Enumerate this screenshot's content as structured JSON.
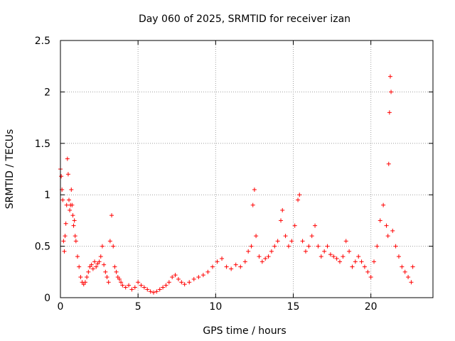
{
  "chart_data": {
    "type": "scatter",
    "title": "Day 060 of 2025, SRMTID for receiver izan",
    "xlabel": "GPS time / hours",
    "ylabel": "SRMTID / TECUs",
    "xlim": [
      0,
      24
    ],
    "ylim": [
      0,
      2.5
    ],
    "xticks": [
      0,
      5,
      10,
      15,
      20
    ],
    "xtick_labels": [
      "0",
      "5",
      "10",
      "15",
      "20"
    ],
    "yticks": [
      0,
      0.5,
      1,
      1.5,
      2,
      2.5
    ],
    "ytick_labels": [
      "0",
      "0.5",
      "1",
      "1.5",
      "2",
      "2.5"
    ],
    "grid": true,
    "marker": "+",
    "color": "#ff0000",
    "series": [
      {
        "name": "SRMTID",
        "x": [
          0.0,
          0.05,
          0.1,
          0.15,
          0.2,
          0.25,
          0.3,
          0.35,
          0.4,
          0.45,
          0.5,
          0.55,
          0.6,
          0.65,
          0.7,
          0.75,
          0.8,
          0.85,
          0.9,
          0.95,
          1.0,
          1.1,
          1.2,
          1.3,
          1.4,
          1.5,
          1.6,
          1.7,
          1.8,
          1.9,
          2.0,
          2.1,
          2.2,
          2.3,
          2.4,
          2.5,
          2.6,
          2.7,
          2.8,
          2.9,
          3.0,
          3.1,
          3.2,
          3.3,
          3.4,
          3.5,
          3.6,
          3.7,
          3.8,
          3.9,
          4.0,
          4.2,
          4.4,
          4.6,
          4.8,
          5.0,
          5.2,
          5.4,
          5.6,
          5.8,
          6.0,
          6.2,
          6.4,
          6.6,
          6.8,
          7.0,
          7.2,
          7.4,
          7.6,
          7.8,
          8.0,
          8.3,
          8.6,
          8.9,
          9.2,
          9.5,
          9.8,
          10.1,
          10.4,
          10.7,
          11.0,
          11.3,
          11.6,
          11.9,
          12.1,
          12.3,
          12.4,
          12.5,
          12.6,
          12.8,
          13.0,
          13.2,
          13.4,
          13.6,
          13.8,
          14.0,
          14.2,
          14.3,
          14.5,
          14.7,
          14.9,
          15.1,
          15.3,
          15.4,
          15.6,
          15.8,
          16.0,
          16.2,
          16.4,
          16.6,
          16.8,
          17.0,
          17.2,
          17.4,
          17.6,
          17.8,
          18.0,
          18.2,
          18.4,
          18.6,
          18.8,
          19.0,
          19.2,
          19.4,
          19.6,
          19.8,
          20.0,
          20.2,
          20.4,
          20.6,
          20.8,
          21.0,
          21.1,
          21.15,
          21.2,
          21.25,
          21.3,
          21.4,
          21.6,
          21.8,
          22.0,
          22.2,
          22.4,
          22.6,
          22.7
        ],
        "y": [
          1.25,
          1.18,
          1.05,
          0.95,
          0.55,
          0.45,
          0.6,
          0.72,
          0.9,
          1.35,
          1.2,
          0.95,
          0.85,
          0.9,
          1.05,
          0.9,
          0.8,
          0.7,
          0.75,
          0.6,
          0.55,
          0.4,
          0.3,
          0.2,
          0.15,
          0.13,
          0.15,
          0.2,
          0.25,
          0.3,
          0.32,
          0.28,
          0.35,
          0.3,
          0.33,
          0.35,
          0.4,
          0.5,
          0.32,
          0.25,
          0.2,
          0.15,
          0.55,
          0.8,
          0.5,
          0.3,
          0.25,
          0.2,
          0.18,
          0.15,
          0.12,
          0.1,
          0.12,
          0.08,
          0.1,
          0.15,
          0.12,
          0.1,
          0.08,
          0.06,
          0.05,
          0.06,
          0.08,
          0.1,
          0.12,
          0.15,
          0.2,
          0.22,
          0.18,
          0.15,
          0.13,
          0.15,
          0.18,
          0.2,
          0.22,
          0.25,
          0.3,
          0.35,
          0.38,
          0.3,
          0.28,
          0.32,
          0.3,
          0.35,
          0.45,
          0.5,
          0.9,
          1.05,
          0.6,
          0.4,
          0.35,
          0.38,
          0.4,
          0.45,
          0.5,
          0.55,
          0.75,
          0.85,
          0.6,
          0.5,
          0.55,
          0.7,
          0.95,
          1.0,
          0.55,
          0.45,
          0.5,
          0.6,
          0.7,
          0.5,
          0.4,
          0.45,
          0.5,
          0.42,
          0.4,
          0.38,
          0.35,
          0.4,
          0.55,
          0.45,
          0.3,
          0.35,
          0.4,
          0.35,
          0.3,
          0.25,
          0.2,
          0.35,
          0.5,
          0.75,
          0.9,
          0.7,
          0.6,
          1.3,
          1.8,
          2.15,
          2.0,
          0.65,
          0.5,
          0.4,
          0.3,
          0.25,
          0.2,
          0.15,
          0.3
        ]
      }
    ]
  }
}
